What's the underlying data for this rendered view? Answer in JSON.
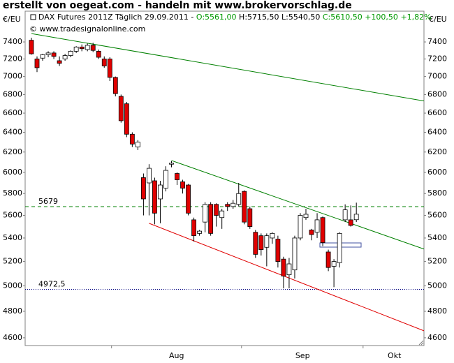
{
  "chart_data": {
    "type": "candlestick",
    "title": "erstellt von oegeat.com - handeln mit www.brokervorschlag.de",
    "header": {
      "symbol": "DAX Futures 2011Z Täglich",
      "date": "29.09.2011 -",
      "open": "O:5561,00",
      "high": "H:5715,50",
      "low": "L:5540,50",
      "close": "C:5610,50",
      "change": "+100,50",
      "change_pct": "+1,82%",
      "up_color": "#009900"
    },
    "source": "© www.tradesignalonline.com",
    "y_unit": "€/EU",
    "log_scale": true,
    "up_color": "#ffffff",
    "down_color": "#e00000",
    "open": [
      7420,
      7200,
      7210,
      7250,
      7270,
      7180,
      7200,
      7240,
      7290,
      7340,
      7310,
      7360,
      7290,
      7200,
      7200,
      6990,
      6780,
      6700,
      6380,
      6250,
      5950,
      5900,
      5920,
      5750,
      5850,
      6080,
      5990,
      5910,
      5880,
      5560,
      5440,
      5540,
      5700,
      5700,
      5580,
      5700,
      5680,
      5700,
      5820,
      5660,
      5450,
      5420,
      5320,
      5400,
      5390,
      5220,
      5090,
      5130,
      5400,
      5580,
      5470,
      5450,
      5580,
      5280,
      5160,
      5190,
      5560,
      5560,
      5561
    ],
    "high": [
      7450,
      7230,
      7260,
      7290,
      7290,
      7230,
      7260,
      7300,
      7350,
      7370,
      7380,
      7390,
      7310,
      7230,
      7220,
      7000,
      6800,
      6720,
      6400,
      6320,
      5990,
      6080,
      5950,
      5920,
      6060,
      6110,
      6000,
      5930,
      5890,
      5580,
      5470,
      5720,
      5720,
      5710,
      5660,
      5720,
      5740,
      5900,
      5830,
      5680,
      5470,
      5440,
      5440,
      5450,
      5420,
      5240,
      5230,
      5420,
      5620,
      5660,
      5480,
      5620,
      5590,
      5300,
      5220,
      5450,
      5700,
      5690,
      5715.5
    ],
    "low": [
      7250,
      7050,
      7180,
      7220,
      7200,
      7120,
      7180,
      7220,
      7270,
      7290,
      7290,
      7280,
      7200,
      7100,
      6950,
      6780,
      6500,
      6350,
      6250,
      6220,
      5600,
      5600,
      5520,
      5530,
      5820,
      6050,
      5880,
      5800,
      5600,
      5370,
      5420,
      5450,
      5420,
      5500,
      5480,
      5640,
      5660,
      5680,
      5520,
      5480,
      5230,
      5250,
      5160,
      5350,
      5150,
      4980,
      4980,
      5060,
      5380,
      5560,
      5380,
      5400,
      5330,
      5120,
      4990,
      5150,
      5540,
      5500,
      5540.5
    ],
    "close": [
      7260,
      7100,
      7250,
      7270,
      7230,
      7150,
      7240,
      7290,
      7340,
      7320,
      7360,
      7300,
      7220,
      7120,
      6990,
      6810,
      6520,
      6380,
      6280,
      6300,
      5750,
      6040,
      5620,
      5880,
      6020,
      6090,
      5930,
      5850,
      5620,
      5420,
      5460,
      5700,
      5440,
      5600,
      5640,
      5680,
      5710,
      5800,
      5540,
      5500,
      5260,
      5300,
      5420,
      5440,
      5200,
      5080,
      5180,
      5400,
      5600,
      5610,
      5430,
      5560,
      5360,
      5150,
      5200,
      5440,
      5650,
      5510,
      5610.5
    ],
    "xlim": [
      -1.12,
      70.07
    ],
    "xticks": [
      {
        "value": 25.9,
        "label": "Aug"
      },
      {
        "value": 48.4,
        "label": "Sep"
      },
      {
        "value": 64.8,
        "label": "Okt"
      }
    ],
    "month_boundaries": [
      14.3,
      37.5,
      59.2
    ],
    "ylim": [
      4543,
      7775
    ],
    "yticks": [
      4600,
      4800,
      5000,
      5200,
      5400,
      5600,
      5800,
      6000,
      6200,
      6400,
      6600,
      6800,
      7000,
      7200,
      7400
    ],
    "trendlines": [
      {
        "color": "#008000",
        "points": [
          [
            0,
            7500
          ],
          [
            70.07,
            6730
          ]
        ]
      },
      {
        "color": "#008000",
        "points": [
          [
            25,
            6116
          ],
          [
            70.07,
            5305
          ]
        ]
      },
      {
        "color": "#e00000",
        "points": [
          [
            21,
            5529
          ],
          [
            70.07,
            4652
          ]
        ]
      }
    ],
    "levels": [
      {
        "value": 5679,
        "label": "5679",
        "color": "#008000",
        "dash": "5,4"
      },
      {
        "value": 4972.5,
        "label": "4972,5",
        "color": "#000080",
        "dash": "1,2"
      }
    ]
  }
}
